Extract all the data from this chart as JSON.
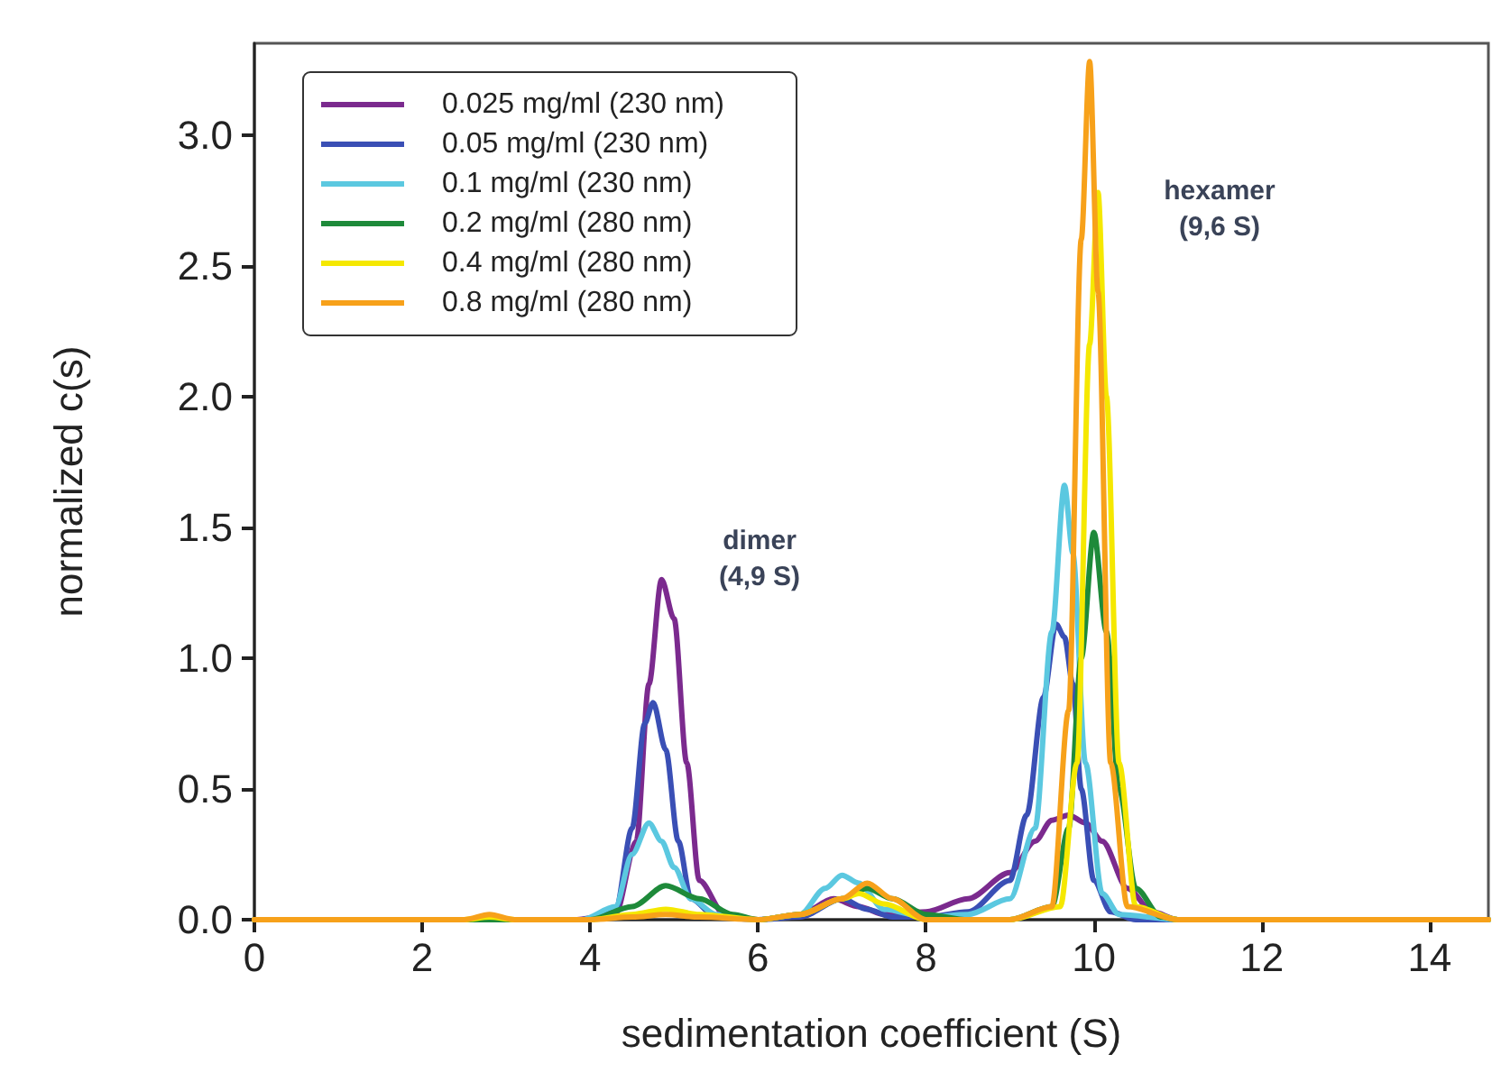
{
  "chart_data": {
    "type": "line",
    "xlabel": "sedimentation coefficient (S)",
    "ylabel": "normalized c(s)",
    "xlim": [
      0,
      14.7
    ],
    "xticks": [
      0,
      2,
      4,
      6,
      8,
      10,
      12,
      14
    ],
    "ylim": [
      0,
      3.35
    ],
    "yticks": [
      {
        "value": 0,
        "label": "0.0"
      },
      0.5,
      {
        "value": 1,
        "label": "1.0"
      },
      1.5,
      {
        "value": 2,
        "label": "2.0"
      },
      2.5,
      {
        "value": 3,
        "label": "3.0"
      }
    ],
    "grid": false,
    "legend": "top left",
    "marker": "none",
    "line_style": "solid",
    "annotations": [
      "dimer\n(4,9 S)",
      "hexamer\n(9,6 S)"
    ],
    "series": [
      {
        "name": "0.025 mg/ml (230 nm)",
        "color": "#7b2a8e",
        "x": [
          0,
          3.8,
          4.3,
          4.55,
          4.7,
          4.85,
          5.0,
          5.15,
          5.3,
          5.6,
          6.0,
          6.5,
          6.9,
          7.2,
          7.5,
          8.0,
          8.5,
          9.0,
          9.3,
          9.5,
          9.7,
          9.9,
          10.1,
          10.4,
          10.7,
          11.0,
          12,
          14.7
        ],
        "values": [
          0,
          0,
          0.02,
          0.3,
          0.9,
          1.3,
          1.15,
          0.6,
          0.15,
          0.02,
          0,
          0.02,
          0.08,
          0.05,
          0.02,
          0.03,
          0.08,
          0.18,
          0.3,
          0.38,
          0.4,
          0.37,
          0.3,
          0.12,
          0.03,
          0,
          0,
          0
        ]
      },
      {
        "name": "0.05 mg/ml (230 nm)",
        "color": "#3a4fb5",
        "x": [
          0,
          3.9,
          4.3,
          4.5,
          4.65,
          4.75,
          4.9,
          5.05,
          5.2,
          5.5,
          6,
          6.5,
          7.0,
          7.3,
          7.6,
          8,
          8.5,
          9.0,
          9.2,
          9.4,
          9.55,
          9.65,
          9.75,
          9.85,
          10.0,
          10.2,
          10.5,
          11,
          14.7
        ],
        "values": [
          0,
          0,
          0.03,
          0.35,
          0.75,
          0.83,
          0.65,
          0.3,
          0.08,
          0.01,
          0,
          0.01,
          0.08,
          0.04,
          0.01,
          0.01,
          0.03,
          0.15,
          0.4,
          0.85,
          1.13,
          1.08,
          0.9,
          0.5,
          0.15,
          0.03,
          0,
          0,
          0
        ]
      },
      {
        "name": "0.1 mg/ml (230 nm)",
        "color": "#5bc8e0",
        "x": [
          0,
          3.9,
          4.3,
          4.5,
          4.7,
          4.85,
          5.0,
          5.2,
          5.5,
          6,
          6.5,
          6.8,
          7.0,
          7.2,
          7.5,
          8,
          8.5,
          9.0,
          9.3,
          9.5,
          9.65,
          9.75,
          9.9,
          10.1,
          10.3,
          11,
          14.7
        ],
        "values": [
          0,
          0,
          0.05,
          0.25,
          0.37,
          0.3,
          0.2,
          0.08,
          0.02,
          0,
          0.02,
          0.12,
          0.17,
          0.14,
          0.04,
          0.01,
          0.02,
          0.08,
          0.35,
          1.1,
          1.66,
          1.4,
          0.6,
          0.1,
          0.02,
          0,
          0
        ]
      },
      {
        "name": "0.2 mg/ml (280 nm)",
        "color": "#1e8a3a",
        "x": [
          0,
          4.0,
          4.5,
          4.9,
          5.3,
          5.7,
          6.0,
          6.5,
          7.0,
          7.3,
          7.6,
          8.0,
          8.5,
          9.0,
          9.5,
          9.7,
          9.85,
          10.0,
          10.15,
          10.3,
          10.5,
          10.8,
          11,
          14.7
        ],
        "values": [
          0,
          0,
          0.05,
          0.13,
          0.08,
          0.02,
          0,
          0.02,
          0.08,
          0.12,
          0.08,
          0.02,
          0,
          0,
          0.05,
          0.35,
          1.0,
          1.48,
          1.1,
          0.5,
          0.12,
          0.01,
          0,
          0
        ]
      },
      {
        "name": "0.4 mg/ml (280 nm)",
        "color": "#f5e800",
        "x": [
          0,
          2.5,
          2.8,
          3.1,
          4,
          4.5,
          4.9,
          5.3,
          6,
          6.5,
          7.0,
          7.2,
          7.5,
          8.0,
          9.0,
          9.6,
          9.8,
          9.95,
          10.05,
          10.15,
          10.3,
          10.5,
          11,
          14.7
        ],
        "values": [
          0,
          0,
          0.01,
          0,
          0,
          0.02,
          0.04,
          0.02,
          0,
          0.02,
          0.08,
          0.1,
          0.06,
          0,
          0,
          0.05,
          0.6,
          2.2,
          2.78,
          2.0,
          0.6,
          0.05,
          0,
          0
        ]
      },
      {
        "name": "0.8 mg/ml (280 nm)",
        "color": "#f7a11a",
        "x": [
          0,
          2.5,
          2.8,
          3.1,
          4,
          4.5,
          4.9,
          5.3,
          6,
          6.5,
          7.0,
          7.3,
          7.6,
          8.0,
          9.0,
          9.5,
          9.7,
          9.85,
          9.95,
          10.05,
          10.2,
          10.4,
          11,
          14.7
        ],
        "values": [
          0,
          0,
          0.02,
          0,
          0,
          0.01,
          0.02,
          0.01,
          0,
          0.02,
          0.08,
          0.14,
          0.08,
          0,
          0,
          0.05,
          0.8,
          2.6,
          3.28,
          2.4,
          0.6,
          0.05,
          0,
          0
        ]
      }
    ]
  }
}
